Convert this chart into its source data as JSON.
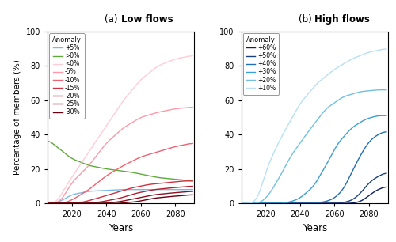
{
  "title_a_prefix": "(a) ",
  "title_a_bold": "Low flows",
  "title_b_prefix": "(b) ",
  "title_b_bold": "High flows",
  "xlabel": "Years",
  "ylabel": "Percentage of members (%)",
  "ylim": [
    0,
    100
  ],
  "xlim": [
    2006,
    2091
  ],
  "x_ticks": [
    2020,
    2040,
    2060,
    2080
  ],
  "y_ticks": [
    0,
    20,
    40,
    60,
    80,
    100
  ],
  "low_flow_legend": [
    "+5%",
    ">0%",
    "<0%",
    "-5%",
    "-10%",
    "-15%",
    "-20%",
    "-25%",
    "-30%"
  ],
  "low_flow_colors": [
    "#7ab8e8",
    "#5faa3c",
    "#ffccd5",
    "#ff99aa",
    "#f06070",
    "#d03040",
    "#b02030",
    "#8c1020",
    "#6b0010"
  ],
  "high_flow_legend": [
    "+60%",
    "+50%",
    "+40%",
    "+30%",
    "+20%",
    "+10%"
  ],
  "high_flow_colors": [
    "#0d2060",
    "#1a4080",
    "#2070b0",
    "#3aa0d0",
    "#70c0e0",
    "#b8e0f0"
  ]
}
